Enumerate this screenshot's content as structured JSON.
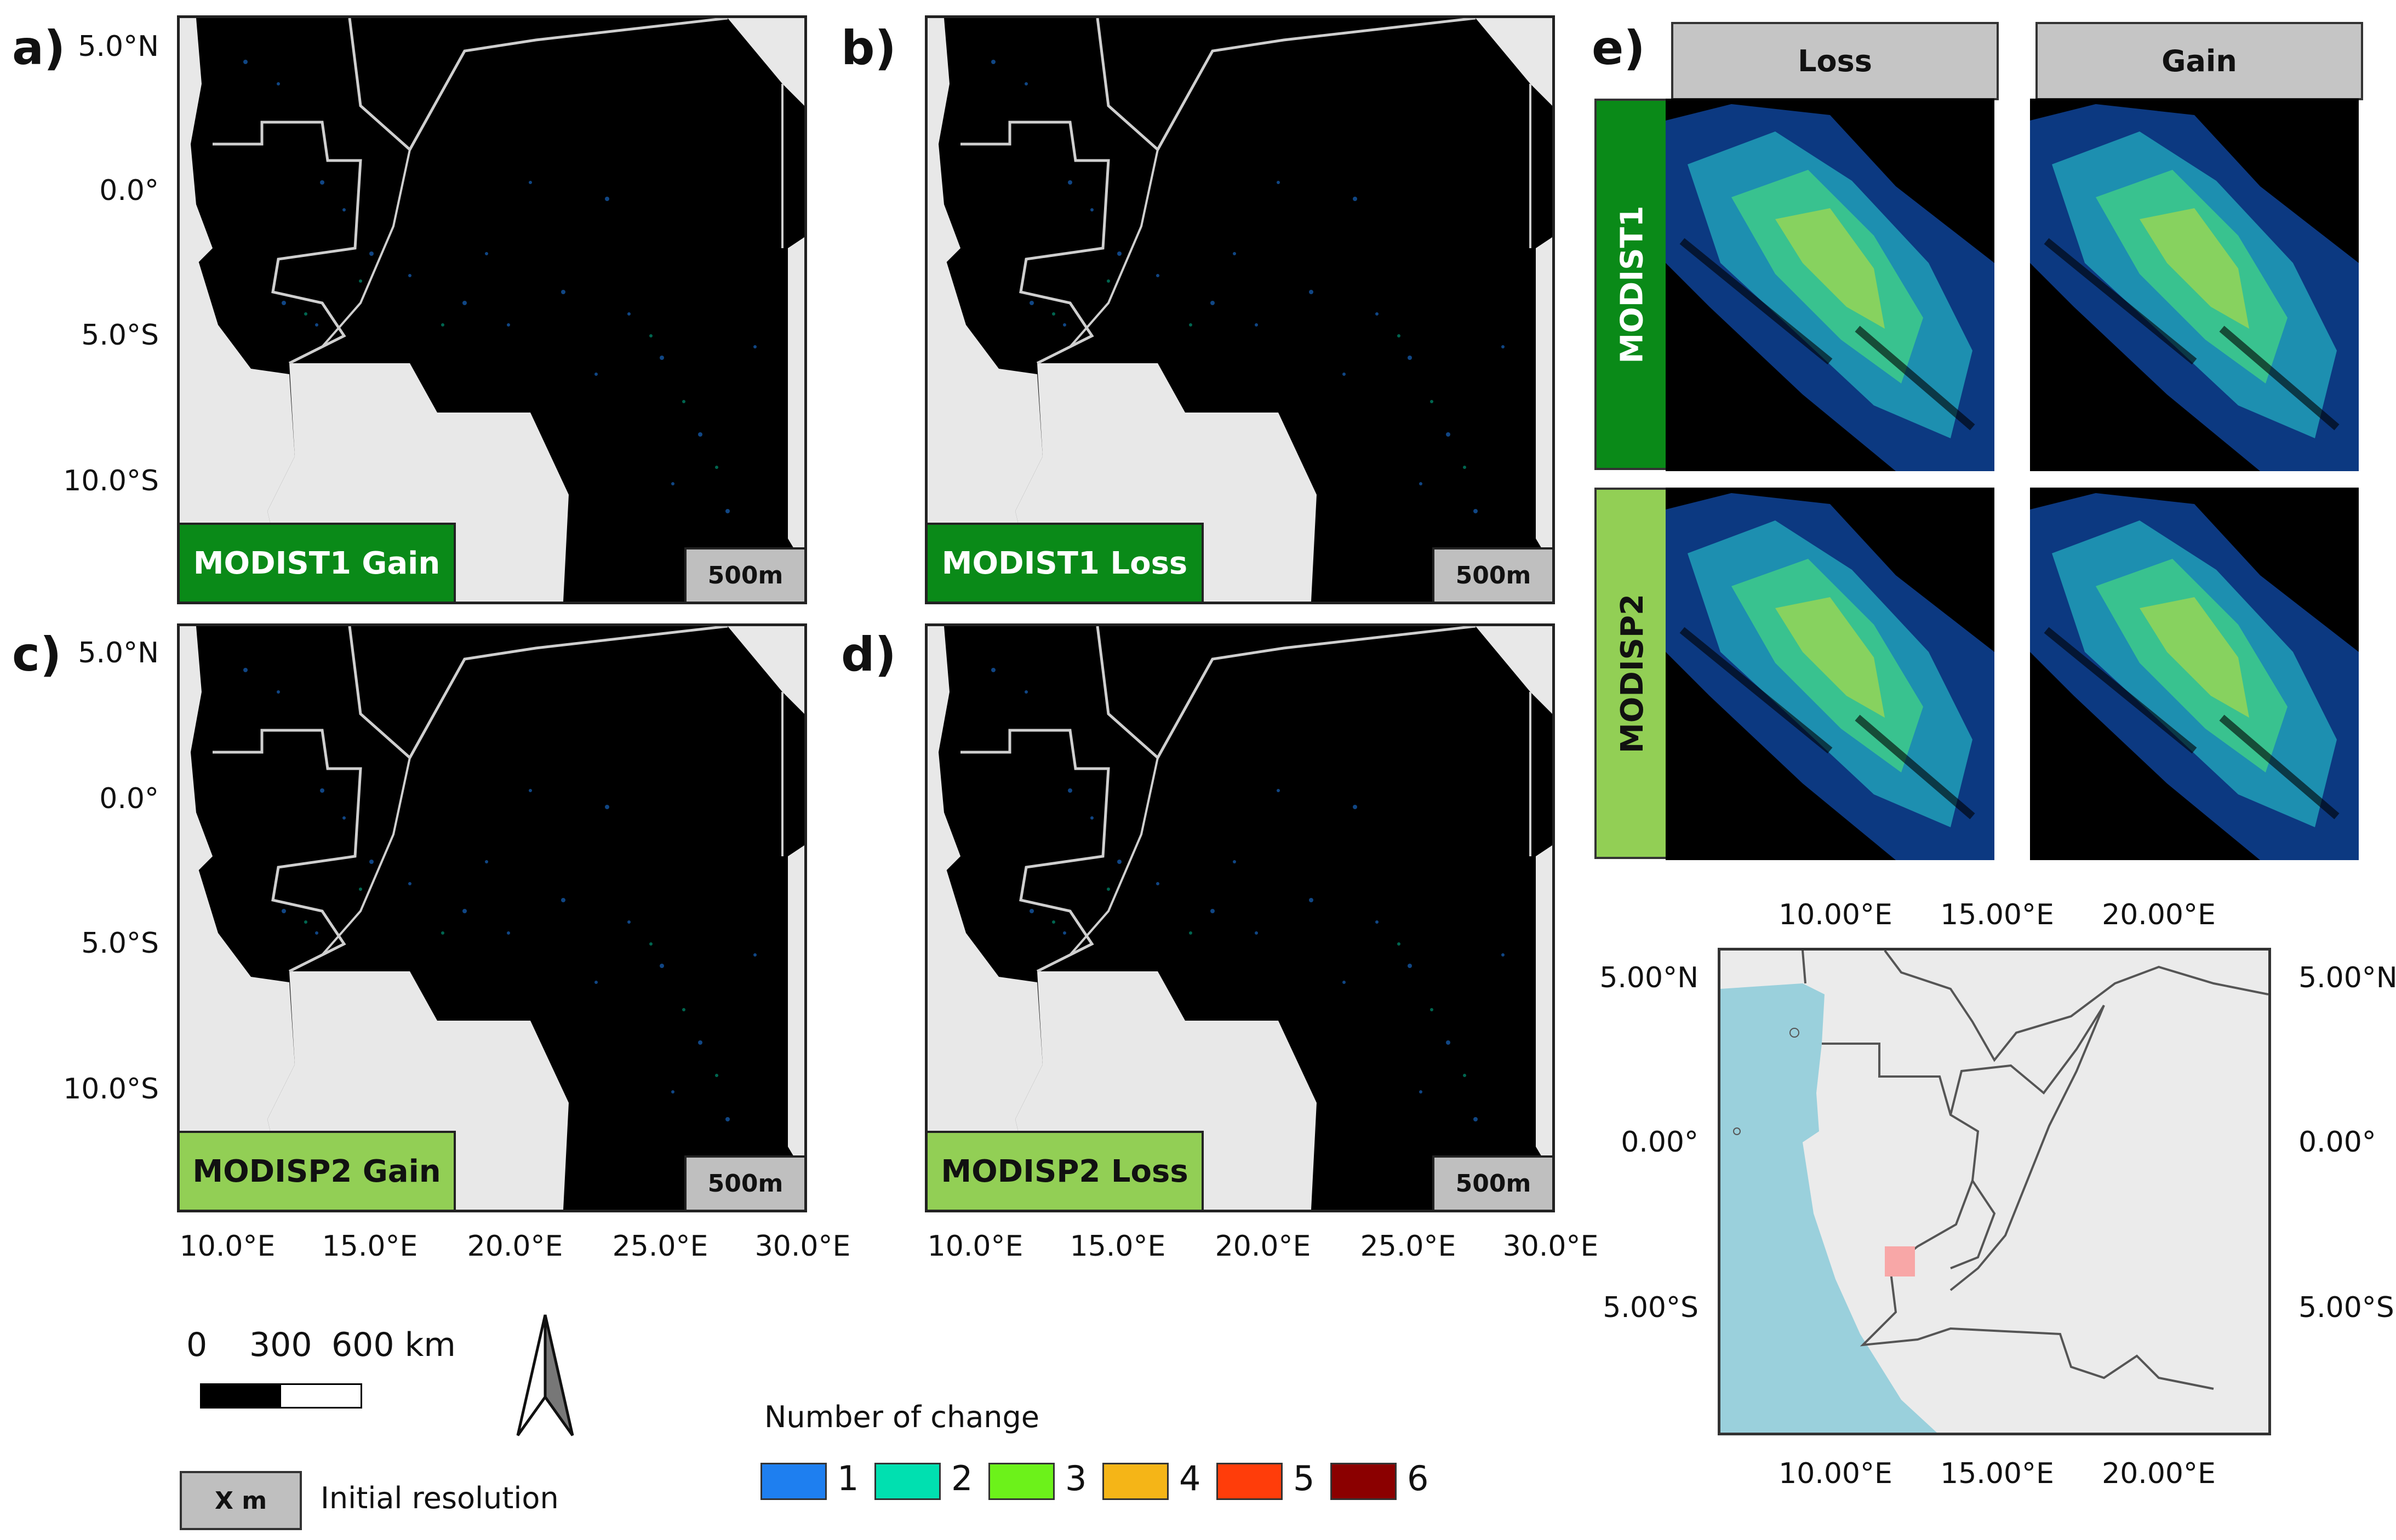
{
  "panels": {
    "a": {
      "letter": "a)",
      "tag": "MODIST1 Gain",
      "res": "500m"
    },
    "b": {
      "letter": "b)",
      "tag": "MODIST1 Loss",
      "res": "500m"
    },
    "c": {
      "letter": "c)",
      "tag": "MODISP2 Gain",
      "res": "500m"
    },
    "d": {
      "letter": "d)",
      "tag": "MODISP2 Loss",
      "res": "500m"
    },
    "e": {
      "letter": "e)"
    }
  },
  "lat_ticks": [
    "5.0°N",
    "0.0°",
    "5.0°S",
    "10.0°S"
  ],
  "lon_ticks": [
    "10.0°E",
    "15.0°E",
    "20.0°E",
    "25.0°E",
    "30.0°E"
  ],
  "grid_e": {
    "cols": [
      "Loss",
      "Gain"
    ],
    "rows": [
      "MODIST1",
      "MODISP2"
    ]
  },
  "locator": {
    "top_ticks": [
      "10.00°E",
      "15.00°E",
      "20.00°E"
    ],
    "bottom_ticks": [
      "10.00°E",
      "15.00°E",
      "20.00°E"
    ],
    "left_ticks": [
      "5.00°N",
      "0.00°",
      "5.00°S"
    ],
    "right_ticks": [
      "5.00°N",
      "0.00°",
      "5.00°S"
    ]
  },
  "scalebar": {
    "labels": [
      "0",
      "300",
      "600 km"
    ]
  },
  "resolution_legend": {
    "box": "X m",
    "label": "Initial resolution"
  },
  "change_legend": {
    "title": "Number of change",
    "items": [
      {
        "label": "1",
        "color": "#1e7ff0"
      },
      {
        "label": "2",
        "color": "#00e0b0"
      },
      {
        "label": "3",
        "color": "#6cf21a"
      },
      {
        "label": "4",
        "color": "#f5b517"
      },
      {
        "label": "5",
        "color": "#ff3d0a"
      },
      {
        "label": "6",
        "color": "#8b0000"
      }
    ]
  },
  "colors": {
    "tag_dark": "#0a8a18",
    "tag_light": "#92cf55",
    "ocean": "#9ad0dc",
    "land": "#ebebeb",
    "highlight": "#f8a7a7"
  }
}
